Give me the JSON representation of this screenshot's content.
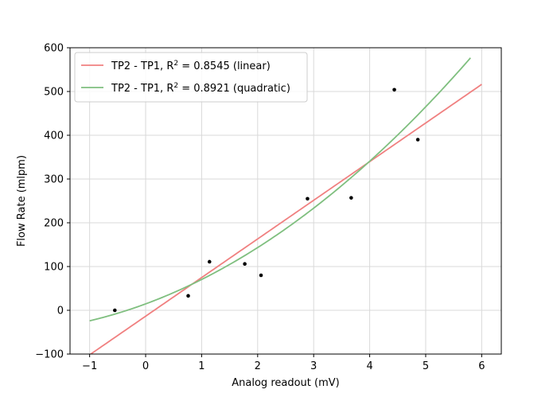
{
  "chart_data": {
    "type": "scatter",
    "title": "",
    "xlabel": "Analog readout (mV)",
    "ylabel": "Flow Rate (mlpm)",
    "xlim": [
      -1.35,
      6.35
    ],
    "ylim": [
      -100,
      600
    ],
    "grid": true,
    "legend_location": "upper-left",
    "xticks": [
      -1,
      0,
      1,
      2,
      3,
      4,
      5,
      6
    ],
    "xtick_labels": [
      "−1",
      "0",
      "1",
      "2",
      "3",
      "4",
      "5",
      "6"
    ],
    "yticks": [
      -100,
      0,
      100,
      200,
      300,
      400,
      500,
      600
    ],
    "ytick_labels": [
      "−100",
      "0",
      "100",
      "200",
      "300",
      "400",
      "500",
      "600"
    ],
    "points": {
      "name": "data",
      "color": "#000000",
      "x": [
        -0.55,
        0.76,
        1.14,
        1.77,
        2.06,
        2.89,
        3.67,
        4.44,
        4.86
      ],
      "y": [
        0,
        33,
        111,
        106,
        80,
        255,
        257,
        504,
        390
      ]
    },
    "fits": [
      {
        "name": "linear",
        "legend_prefix": "TP2 - TP1, R",
        "legend_sup": "2",
        "legend_suffix": " = 0.8545 (linear)",
        "color": "#f08080",
        "x_range": [
          -1,
          6
        ],
        "coefficients": [
          -13.5,
          88.3,
          0
        ]
      },
      {
        "name": "quadratic",
        "legend_prefix": "TP2 - TP1, R",
        "legend_sup": "2",
        "legend_suffix": " = 0.8921 (quadratic)",
        "color": "#7fbf7f",
        "x_range": [
          -1,
          5.8
        ],
        "coefficients": [
          14.66,
          47.21,
          8.57
        ]
      }
    ]
  }
}
